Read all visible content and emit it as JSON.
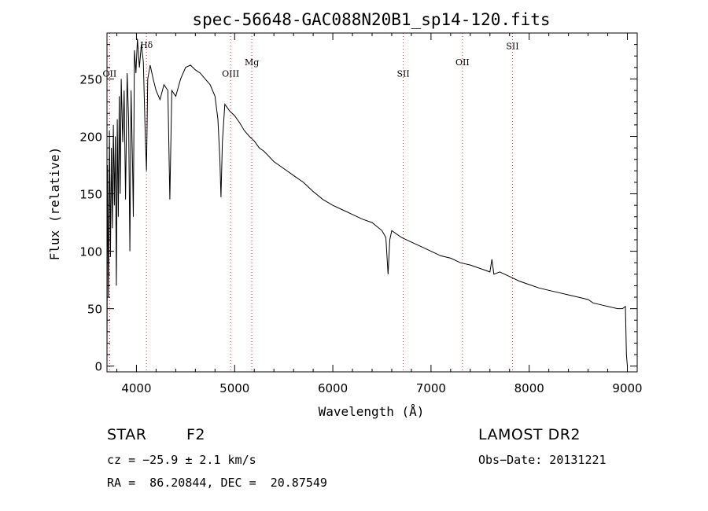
{
  "chart_data": {
    "type": "line",
    "title": "spec-56648-GAC088N20B1_sp14-120.fits",
    "xlabel": "Wavelength (Å)",
    "ylabel": "Flux (relative)",
    "xlim": [
      3700,
      9100
    ],
    "ylim": [
      -5,
      290
    ],
    "grid": false,
    "legend": "none",
    "xticks": [
      4000,
      5000,
      6000,
      7000,
      8000,
      9000
    ],
    "yticks": [
      0,
      50,
      100,
      150,
      200,
      250
    ],
    "line_color": "#000000",
    "marker_color": "#cc3333",
    "line_markers": [
      {
        "label": "OII",
        "x": 3727,
        "label_y": 252
      },
      {
        "label": "Hδ",
        "x": 4102,
        "label_y": 277
      },
      {
        "label": "OIII",
        "x": 4959,
        "label_y": 252
      },
      {
        "label": "Mg",
        "x": 5175,
        "label_y": 262
      },
      {
        "label": "SII",
        "x": 6717,
        "label_y": 252
      },
      {
        "label": "OII",
        "x": 7320,
        "label_y": 262
      },
      {
        "label": "SII",
        "x": 7830,
        "label_y": 276
      }
    ],
    "series": [
      {
        "x": [
          3700,
          3705,
          3715,
          3725,
          3735,
          3745,
          3755,
          3765,
          3775,
          3785,
          3795,
          3805,
          3815,
          3825,
          3835,
          3845,
          3860,
          3875,
          3889,
          3905,
          3920,
          3933,
          3945,
          3960,
          3968,
          3980,
          3995,
          4010,
          4030,
          4050,
          4070,
          4090,
          4102,
          4115,
          4140,
          4170,
          4200,
          4240,
          4280,
          4320,
          4340,
          4360,
          4400,
          4450,
          4500,
          4550,
          4600,
          4650,
          4700,
          4750,
          4800,
          4830,
          4850,
          4861,
          4875,
          4900,
          4950,
          5000,
          5050,
          5100,
          5150,
          5200,
          5250,
          5300,
          5400,
          5500,
          5600,
          5700,
          5800,
          5900,
          6000,
          6100,
          6200,
          6300,
          6400,
          6500,
          6540,
          6563,
          6580,
          6600,
          6700,
          6800,
          6900,
          7000,
          7100,
          7200,
          7300,
          7400,
          7500,
          7600,
          7620,
          7640,
          7700,
          7800,
          7900,
          8000,
          8100,
          8200,
          8300,
          8400,
          8500,
          8600,
          8650,
          8700,
          8750,
          8800,
          8850,
          8900,
          8950,
          8980,
          8990,
          9000
        ],
        "y": [
          0,
          175,
          60,
          205,
          95,
          190,
          120,
          210,
          140,
          200,
          70,
          215,
          130,
          235,
          150,
          250,
          195,
          240,
          145,
          255,
          215,
          100,
          240,
          175,
          130,
          275,
          255,
          285,
          260,
          280,
          265,
          200,
          170,
          250,
          262,
          250,
          240,
          232,
          245,
          240,
          145,
          240,
          235,
          250,
          260,
          262,
          258,
          255,
          250,
          245,
          235,
          215,
          180,
          147,
          195,
          228,
          222,
          218,
          212,
          205,
          200,
          196,
          190,
          187,
          178,
          172,
          166,
          160,
          152,
          145,
          140,
          136,
          132,
          128,
          125,
          118,
          112,
          80,
          110,
          118,
          112,
          108,
          104,
          100,
          96,
          94,
          90,
          88,
          85,
          82,
          93,
          80,
          82,
          78,
          74,
          71,
          68,
          66,
          64,
          62,
          60,
          58,
          55,
          54,
          53,
          52,
          51,
          50,
          50,
          52,
          10,
          0
        ]
      }
    ]
  },
  "info": {
    "object_class": "STAR",
    "subclass": "F2",
    "survey": "LAMOST DR2",
    "cz": "cz = −25.9 ± 2.1 km/s",
    "obs_date": "Obs−Date: 20131221",
    "coords": "RA =  86.20844, DEC =  20.87549"
  }
}
